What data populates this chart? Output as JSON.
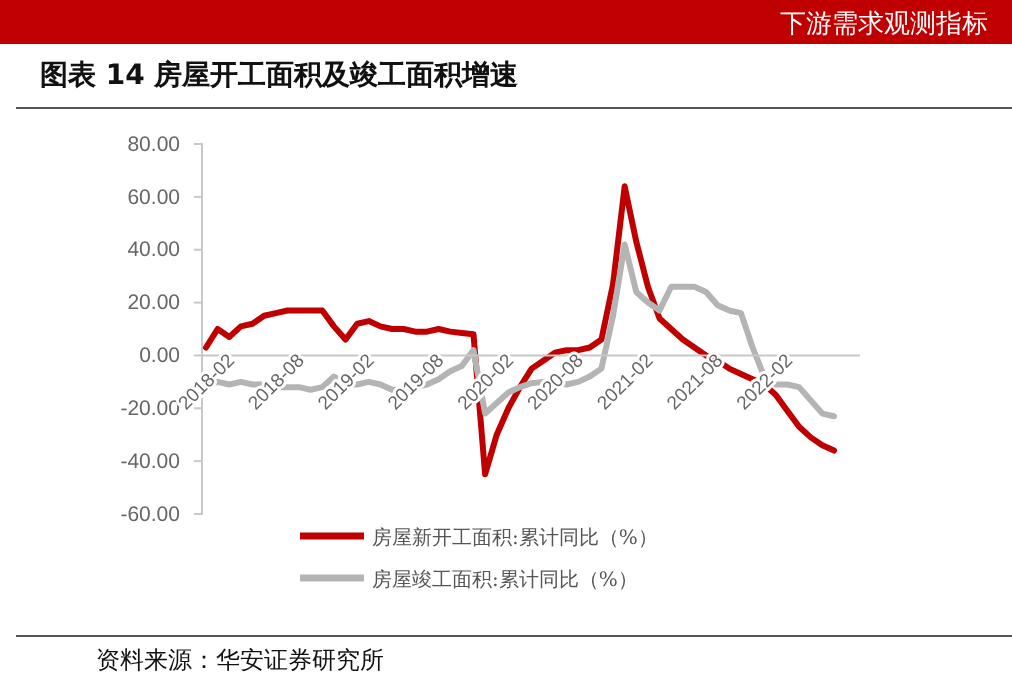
{
  "chart_data": {
    "type": "line",
    "title": "图表 14 房屋开工面积及竣工面积增速",
    "annotations": [
      "下游需求观测指标",
      "资料来源：华安证券研究所"
    ],
    "categories": [
      "2018-02",
      null,
      null,
      null,
      null,
      null,
      "2018-08",
      null,
      null,
      null,
      null,
      null,
      "2019-02",
      null,
      null,
      null,
      null,
      null,
      "2019-08",
      null,
      null,
      null,
      null,
      null,
      "2020-02",
      null,
      null,
      null,
      null,
      null,
      "2020-08",
      null,
      null,
      null,
      null,
      null,
      "2021-02",
      null,
      null,
      null,
      null,
      null,
      "2021-08",
      null,
      null,
      null,
      null,
      null,
      "2022-02",
      null,
      null,
      null,
      null,
      null,
      null
    ],
    "series": [
      {
        "name": "房屋新开工面积:累计同比（%）",
        "color": "#c00000",
        "values": [
          3,
          10,
          7,
          11,
          12,
          15,
          16,
          17,
          17,
          17,
          17,
          11,
          6,
          12,
          13,
          11,
          10,
          10,
          9,
          9,
          10,
          9,
          8.5,
          8,
          -45,
          -30,
          -20,
          -12,
          -5,
          -2,
          1,
          2,
          2,
          3,
          6,
          27,
          64,
          43,
          26,
          14,
          10,
          6,
          3,
          0,
          -2,
          -5,
          -7,
          -9,
          -11,
          -15,
          -21,
          -27,
          -31,
          -34,
          -36
        ]
      },
      {
        "name": "房屋竣工面积:累计同比（%）",
        "color": "#b4b4b4",
        "values": [
          -11.5,
          -10,
          -11,
          -10,
          -11,
          -11,
          -12,
          -12,
          -12,
          -13,
          -12,
          -8,
          -11,
          -11,
          -10,
          -11,
          -13,
          -13,
          -12,
          -11,
          -9,
          -6,
          -4,
          2,
          -22,
          -18,
          -14,
          -12,
          -10.5,
          -10,
          -10,
          -11,
          -10,
          -8,
          -5,
          15,
          42,
          24,
          20,
          17,
          26,
          26,
          26,
          24,
          19,
          17,
          16,
          3,
          -8,
          -11,
          -11,
          -12,
          -17,
          -22,
          -23
        ]
      }
    ],
    "ylim": [
      -60,
      80
    ],
    "yticks": [
      {
        "value": -60,
        "label": "-60.00"
      },
      {
        "value": -40,
        "label": "-40.00"
      },
      {
        "value": -20,
        "label": "-20.00"
      },
      {
        "value": 0,
        "label": "0.00"
      },
      {
        "value": 20,
        "label": "20.00"
      },
      {
        "value": 40,
        "label": "40.00"
      },
      {
        "value": 60,
        "label": "60.00"
      },
      {
        "value": 80,
        "label": "80.00"
      }
    ],
    "legend": "bottom",
    "marker": "none",
    "line_style": "solid"
  }
}
